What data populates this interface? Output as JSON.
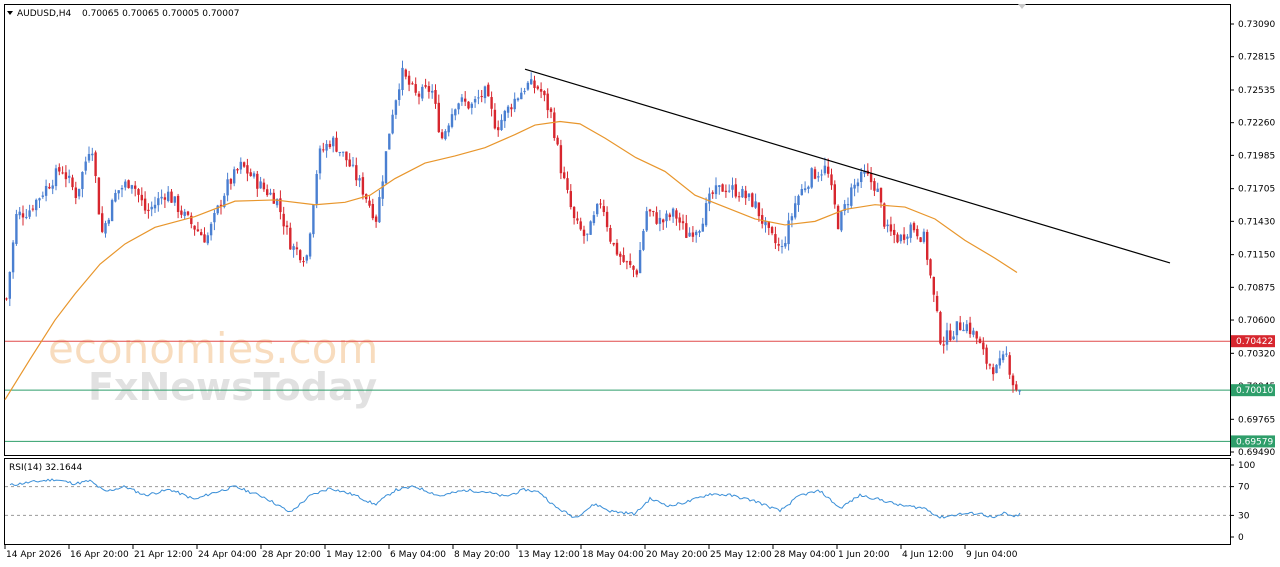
{
  "header": {
    "symbol": "AUDUSD,H4",
    "ohlc": "0.70065 0.70065 0.70005 0.70007"
  },
  "rsi_label": "RSI(14) 32.1644",
  "watermark": {
    "line1": "economies.com",
    "line2": "FxNewsToday"
  },
  "colors": {
    "bull": "#4a7fd1",
    "bear": "#d7262e",
    "ma": "#e8962c",
    "resistance": "#e04a4a",
    "support": "#2e9e6a",
    "rsi_line": "#3a8fd8",
    "trendline": "#000000",
    "resistance_tag": "#d7262e",
    "support_tag": "#2e9e6a"
  },
  "chart_data": [
    {
      "type": "candlestick",
      "symbol": "AUDUSD",
      "timeframe": "H4",
      "price_axis_ticks": [
        "0.73090",
        "0.72815",
        "0.72535",
        "0.72260",
        "0.71985",
        "0.71705",
        "0.71430",
        "0.71150",
        "0.70875",
        "0.70600",
        "0.70320",
        "0.70045",
        "0.69765",
        "0.69490"
      ],
      "ylim": [
        0.6949,
        0.7309
      ],
      "time_axis_ticks": [
        "14 Apr 2026",
        "16 Apr 20:00",
        "21 Apr 12:00",
        "24 Apr 04:00",
        "28 Apr 20:00",
        "1 May 12:00",
        "6 May 04:00",
        "8 May 20:00",
        "13 May 12:00",
        "18 May 04:00",
        "20 May 20:00",
        "25 May 12:00",
        "28 May 04:00",
        "1 Jun 20:00",
        "4 Jun 12:00",
        "9 Jun 04:00"
      ],
      "close_path": [
        {
          "x": 0,
          "close": 0.7078
        },
        {
          "x": 10,
          "close": 0.7148
        },
        {
          "x": 22,
          "close": 0.7152
        },
        {
          "x": 40,
          "close": 0.7172
        },
        {
          "x": 55,
          "close": 0.7188
        },
        {
          "x": 70,
          "close": 0.7165
        },
        {
          "x": 85,
          "close": 0.7212
        },
        {
          "x": 95,
          "close": 0.7132
        },
        {
          "x": 110,
          "close": 0.7168
        },
        {
          "x": 125,
          "close": 0.7178
        },
        {
          "x": 140,
          "close": 0.715
        },
        {
          "x": 160,
          "close": 0.7168
        },
        {
          "x": 180,
          "close": 0.7145
        },
        {
          "x": 200,
          "close": 0.7128
        },
        {
          "x": 220,
          "close": 0.7172
        },
        {
          "x": 235,
          "close": 0.719
        },
        {
          "x": 255,
          "close": 0.7172
        },
        {
          "x": 270,
          "close": 0.7162
        },
        {
          "x": 285,
          "close": 0.7122
        },
        {
          "x": 300,
          "close": 0.7112
        },
        {
          "x": 312,
          "close": 0.7198
        },
        {
          "x": 325,
          "close": 0.7212
        },
        {
          "x": 340,
          "close": 0.7195
        },
        {
          "x": 355,
          "close": 0.7172
        },
        {
          "x": 370,
          "close": 0.7145
        },
        {
          "x": 385,
          "close": 0.7232
        },
        {
          "x": 395,
          "close": 0.7268
        },
        {
          "x": 410,
          "close": 0.7248
        },
        {
          "x": 425,
          "close": 0.7255
        },
        {
          "x": 435,
          "close": 0.7212
        },
        {
          "x": 450,
          "close": 0.7245
        },
        {
          "x": 465,
          "close": 0.724
        },
        {
          "x": 478,
          "close": 0.7252
        },
        {
          "x": 490,
          "close": 0.7222
        },
        {
          "x": 505,
          "close": 0.7242
        },
        {
          "x": 520,
          "close": 0.7258
        },
        {
          "x": 533,
          "close": 0.7255
        },
        {
          "x": 545,
          "close": 0.7232
        },
        {
          "x": 555,
          "close": 0.7185
        },
        {
          "x": 568,
          "close": 0.7142
        },
        {
          "x": 580,
          "close": 0.7128
        },
        {
          "x": 595,
          "close": 0.7162
        },
        {
          "x": 605,
          "close": 0.7125
        },
        {
          "x": 618,
          "close": 0.7108
        },
        {
          "x": 630,
          "close": 0.71
        },
        {
          "x": 640,
          "close": 0.7152
        },
        {
          "x": 655,
          "close": 0.7142
        },
        {
          "x": 668,
          "close": 0.715
        },
        {
          "x": 680,
          "close": 0.7132
        },
        {
          "x": 693,
          "close": 0.714
        },
        {
          "x": 705,
          "close": 0.7165
        },
        {
          "x": 718,
          "close": 0.7172
        },
        {
          "x": 732,
          "close": 0.7168
        },
        {
          "x": 748,
          "close": 0.7158
        },
        {
          "x": 762,
          "close": 0.7132
        },
        {
          "x": 775,
          "close": 0.7118
        },
        {
          "x": 790,
          "close": 0.7162
        },
        {
          "x": 805,
          "close": 0.7182
        },
        {
          "x": 820,
          "close": 0.7188
        },
        {
          "x": 832,
          "close": 0.714
        },
        {
          "x": 845,
          "close": 0.717
        },
        {
          "x": 858,
          "close": 0.7182
        },
        {
          "x": 870,
          "close": 0.7172
        },
        {
          "x": 880,
          "close": 0.7135
        },
        {
          "x": 893,
          "close": 0.7128
        },
        {
          "x": 905,
          "close": 0.714
        },
        {
          "x": 918,
          "close": 0.7128
        },
        {
          "x": 928,
          "close": 0.7075
        },
        {
          "x": 935,
          "close": 0.704
        },
        {
          "x": 945,
          "close": 0.705
        },
        {
          "x": 958,
          "close": 0.7058
        },
        {
          "x": 970,
          "close": 0.7045
        },
        {
          "x": 980,
          "close": 0.7025
        },
        {
          "x": 990,
          "close": 0.7018
        },
        {
          "x": 1000,
          "close": 0.703
        },
        {
          "x": 1008,
          "close": 0.7003
        },
        {
          "x": 1015,
          "close": 0.70007
        }
      ],
      "moving_average": [
        {
          "x": 0,
          "value": 0.6993
        },
        {
          "x": 25,
          "value": 0.7027
        },
        {
          "x": 50,
          "value": 0.706
        },
        {
          "x": 70,
          "value": 0.7082
        },
        {
          "x": 95,
          "value": 0.7107
        },
        {
          "x": 120,
          "value": 0.7124
        },
        {
          "x": 150,
          "value": 0.7138
        },
        {
          "x": 190,
          "value": 0.7147
        },
        {
          "x": 230,
          "value": 0.716
        },
        {
          "x": 270,
          "value": 0.7161
        },
        {
          "x": 310,
          "value": 0.7157
        },
        {
          "x": 340,
          "value": 0.7159
        },
        {
          "x": 365,
          "value": 0.7165
        },
        {
          "x": 390,
          "value": 0.7179
        },
        {
          "x": 420,
          "value": 0.7192
        },
        {
          "x": 450,
          "value": 0.7198
        },
        {
          "x": 480,
          "value": 0.7205
        },
        {
          "x": 510,
          "value": 0.7216
        },
        {
          "x": 530,
          "value": 0.7224
        },
        {
          "x": 555,
          "value": 0.7227
        },
        {
          "x": 575,
          "value": 0.7225
        },
        {
          "x": 600,
          "value": 0.7213
        },
        {
          "x": 630,
          "value": 0.7197
        },
        {
          "x": 660,
          "value": 0.7185
        },
        {
          "x": 690,
          "value": 0.7165
        },
        {
          "x": 720,
          "value": 0.7155
        },
        {
          "x": 750,
          "value": 0.7145
        },
        {
          "x": 780,
          "value": 0.714
        },
        {
          "x": 810,
          "value": 0.7143
        },
        {
          "x": 840,
          "value": 0.7153
        },
        {
          "x": 870,
          "value": 0.7157
        },
        {
          "x": 900,
          "value": 0.7155
        },
        {
          "x": 930,
          "value": 0.7145
        },
        {
          "x": 960,
          "value": 0.7127
        },
        {
          "x": 990,
          "value": 0.7112
        },
        {
          "x": 1012,
          "value": 0.71
        }
      ],
      "trendline": [
        {
          "x": 520,
          "value": 0.7271
        },
        {
          "x": 1165,
          "value": 0.7108
        }
      ],
      "horizontal_levels": [
        {
          "name": "resistance",
          "value": 0.70422,
          "label": "0.70422"
        },
        {
          "name": "support",
          "value": 0.7001,
          "label": "0.70010"
        },
        {
          "name": "lower",
          "value": 0.69579,
          "label": "0.69579"
        }
      ]
    },
    {
      "type": "line",
      "indicator": "RSI(14)",
      "value_label": "32.1644",
      "y_ticks": [
        "100",
        "70",
        "30",
        "0"
      ],
      "ylim": [
        0,
        100
      ],
      "levels": [
        70,
        30
      ],
      "rsi_path": [
        {
          "x": 5,
          "value": 72
        },
        {
          "x": 25,
          "value": 76
        },
        {
          "x": 50,
          "value": 80
        },
        {
          "x": 70,
          "value": 74
        },
        {
          "x": 85,
          "value": 78
        },
        {
          "x": 100,
          "value": 63
        },
        {
          "x": 120,
          "value": 70
        },
        {
          "x": 140,
          "value": 58
        },
        {
          "x": 165,
          "value": 66
        },
        {
          "x": 190,
          "value": 52
        },
        {
          "x": 205,
          "value": 60
        },
        {
          "x": 230,
          "value": 70
        },
        {
          "x": 260,
          "value": 55
        },
        {
          "x": 285,
          "value": 34
        },
        {
          "x": 305,
          "value": 57
        },
        {
          "x": 325,
          "value": 68
        },
        {
          "x": 350,
          "value": 58
        },
        {
          "x": 370,
          "value": 45
        },
        {
          "x": 390,
          "value": 65
        },
        {
          "x": 410,
          "value": 70
        },
        {
          "x": 435,
          "value": 57
        },
        {
          "x": 460,
          "value": 65
        },
        {
          "x": 480,
          "value": 63
        },
        {
          "x": 500,
          "value": 56
        },
        {
          "x": 520,
          "value": 66
        },
        {
          "x": 535,
          "value": 62
        },
        {
          "x": 550,
          "value": 42
        },
        {
          "x": 570,
          "value": 27
        },
        {
          "x": 590,
          "value": 46
        },
        {
          "x": 605,
          "value": 36
        },
        {
          "x": 630,
          "value": 32
        },
        {
          "x": 645,
          "value": 53
        },
        {
          "x": 665,
          "value": 43
        },
        {
          "x": 685,
          "value": 50
        },
        {
          "x": 705,
          "value": 60
        },
        {
          "x": 725,
          "value": 58
        },
        {
          "x": 750,
          "value": 50
        },
        {
          "x": 775,
          "value": 36
        },
        {
          "x": 795,
          "value": 58
        },
        {
          "x": 815,
          "value": 64
        },
        {
          "x": 835,
          "value": 40
        },
        {
          "x": 855,
          "value": 58
        },
        {
          "x": 875,
          "value": 52
        },
        {
          "x": 895,
          "value": 44
        },
        {
          "x": 920,
          "value": 40
        },
        {
          "x": 935,
          "value": 27
        },
        {
          "x": 955,
          "value": 32
        },
        {
          "x": 975,
          "value": 33
        },
        {
          "x": 990,
          "value": 26
        },
        {
          "x": 1000,
          "value": 34
        },
        {
          "x": 1008,
          "value": 27
        },
        {
          "x": 1015,
          "value": 32
        }
      ]
    }
  ]
}
